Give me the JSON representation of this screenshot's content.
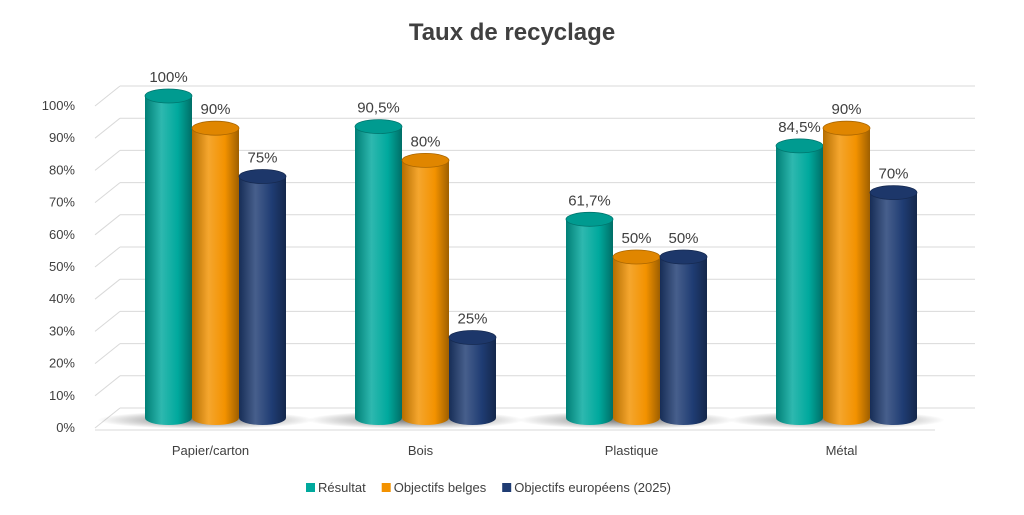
{
  "chart_data": {
    "type": "bar",
    "title": "Taux de recyclage",
    "xlabel": "",
    "ylabel": "",
    "ylim": [
      0,
      100
    ],
    "y_ticks": [
      "0%",
      "10%",
      "20%",
      "30%",
      "40%",
      "50%",
      "60%",
      "70%",
      "80%",
      "90%",
      "100%"
    ],
    "grid": true,
    "legend_position": "bottom",
    "categories": [
      "Papier/carton",
      "Bois",
      "Plastique",
      "Métal"
    ],
    "series": [
      {
        "name": "Résultat",
        "color": "#00A99D",
        "values": [
          100,
          90.5,
          61.7,
          84.5
        ],
        "labels": [
          "100%",
          "90,5%",
          "61,7%",
          "84,5%"
        ]
      },
      {
        "name": "Objectifs belges",
        "color": "#F39200",
        "values": [
          90,
          80,
          50,
          90
        ],
        "labels": [
          "90%",
          "80%",
          "50%",
          "90%"
        ]
      },
      {
        "name": "Objectifs européens (2025)",
        "color": "#1F3C73",
        "values": [
          75,
          25,
          50,
          70
        ],
        "labels": [
          "75%",
          "25%",
          "50%",
          "70%"
        ]
      }
    ]
  }
}
